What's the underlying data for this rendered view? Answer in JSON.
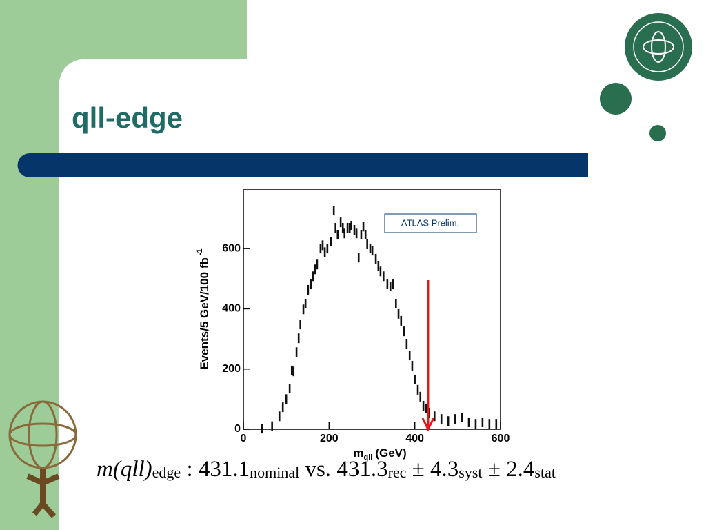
{
  "slide": {
    "title": "qll-edge",
    "formula": {
      "lhs": "m(qll)",
      "lhs_sub": "edge",
      "nominal": ": 431.1",
      "nominal_sub": "nominal",
      "vs": "vs.",
      "rec": "431.3",
      "rec_sub": "rec",
      "syst": "± 4.3",
      "syst_sub": "syst",
      "stat": "± 2.4",
      "stat_sub": "stat"
    }
  },
  "chart_data": {
    "type": "scatter",
    "annotation": "ATLAS Prelim.",
    "x_label": "m",
    "x_label_sub": "qll",
    "x_label_unit": "(GeV)",
    "y_label": "Events/5 GeV/100 fb",
    "y_label_sup": "-1",
    "color": "#111111",
    "x": [
      43,
      67,
      84,
      92,
      100,
      108,
      113,
      117,
      124,
      129,
      133,
      140,
      145,
      151,
      158,
      162,
      167,
      172,
      180,
      185,
      190,
      196,
      204,
      211,
      215,
      220,
      227,
      232,
      236,
      243,
      248,
      252,
      259,
      264,
      269,
      275,
      280,
      285,
      289,
      296,
      301,
      309,
      315,
      320,
      327,
      336,
      343,
      349,
      356,
      362,
      368,
      375,
      381,
      388,
      394,
      400,
      407,
      413,
      420,
      426,
      433,
      446,
      462,
      478,
      494,
      510,
      526,
      542,
      558,
      574,
      590
    ],
    "values": [
      2,
      10,
      43,
      73,
      100,
      135,
      195,
      192,
      256,
      302,
      348,
      398,
      417,
      463,
      481,
      508,
      531,
      547,
      600,
      611,
      588,
      600,
      623,
      726,
      669,
      646,
      687,
      669,
      650,
      669,
      669,
      676,
      662,
      650,
      570,
      646,
      673,
      646,
      614,
      600,
      593,
      566,
      543,
      524,
      508,
      481,
      474,
      481,
      417,
      383,
      360,
      325,
      284,
      245,
      211,
      165,
      131,
      108,
      78,
      69,
      55,
      43,
      34,
      27,
      34,
      39,
      23,
      18,
      23,
      18,
      18
    ],
    "arrow": {
      "x": 431,
      "y": [
        495,
        0
      ],
      "color": "#e8141b"
    },
    "xlim": [
      0,
      600
    ],
    "ylim": [
      0,
      795
    ],
    "xticks": [
      0,
      200,
      400,
      600
    ],
    "yticks": [
      0,
      200,
      400,
      600
    ]
  }
}
